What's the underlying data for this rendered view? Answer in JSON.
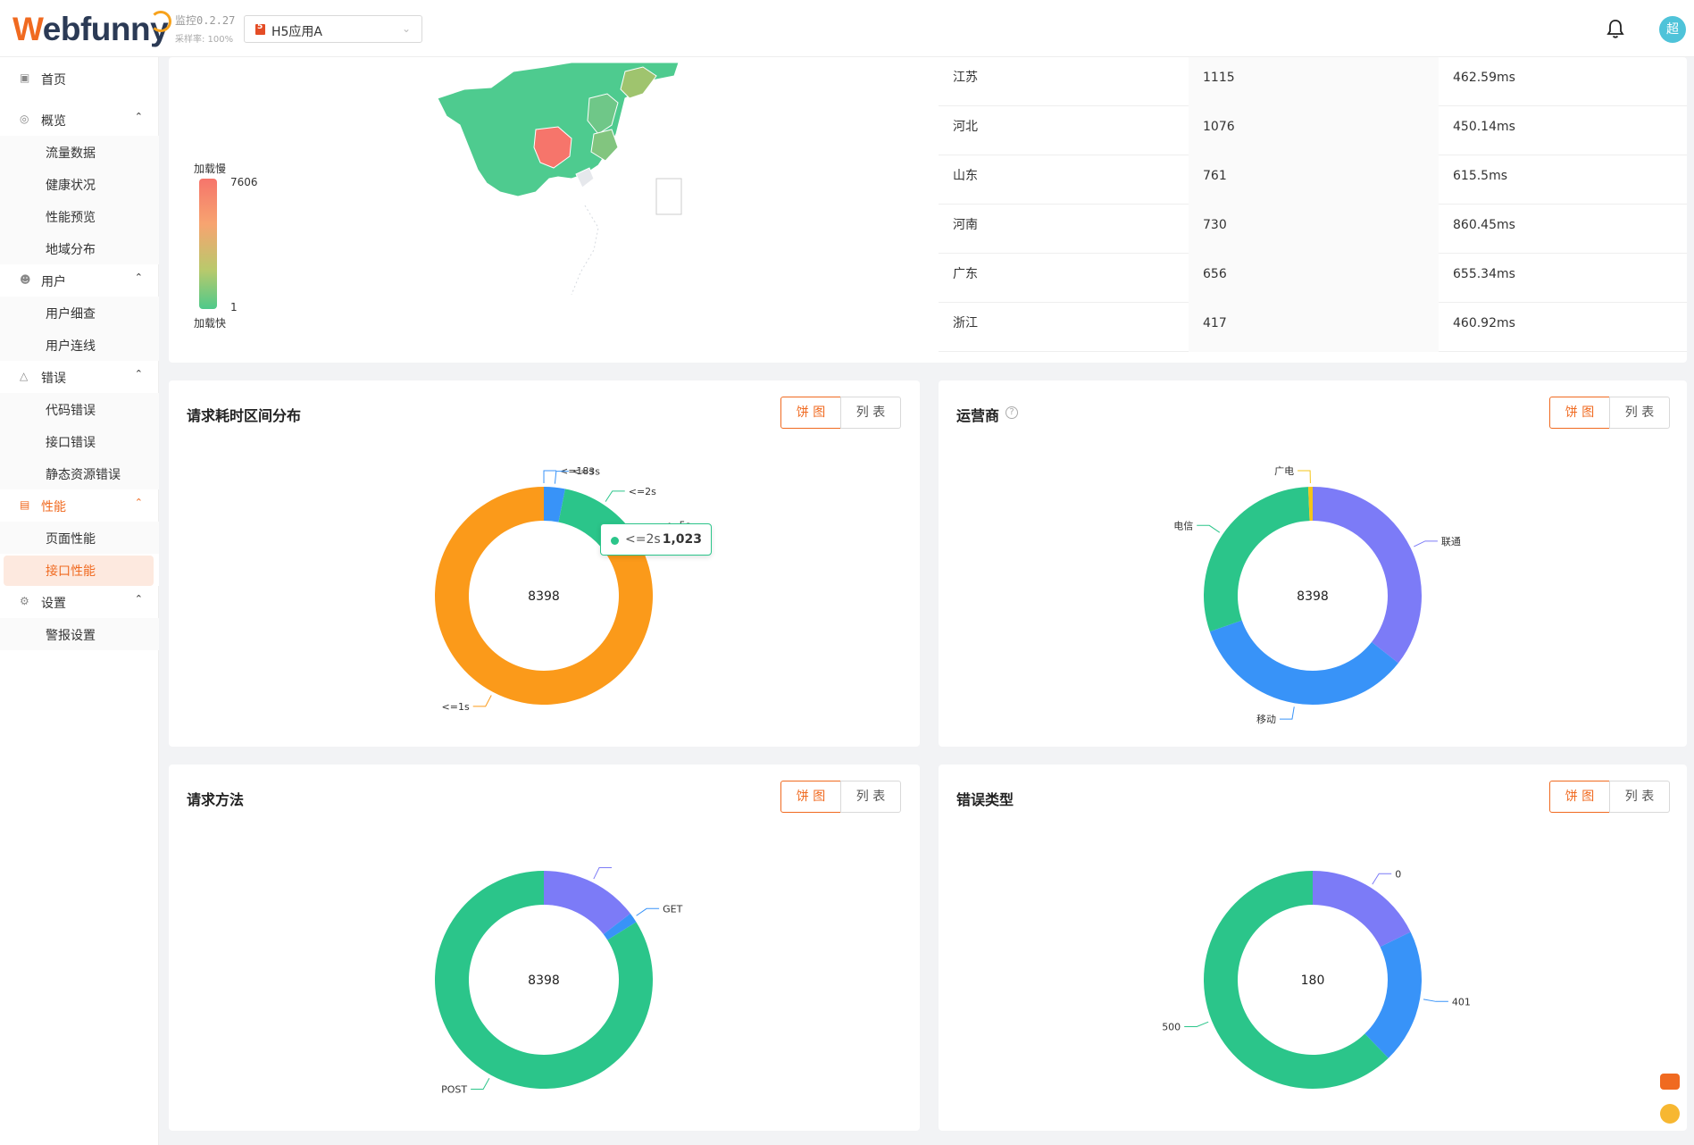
{
  "header": {
    "logo_w": "W",
    "logo_rest": "ebfunny",
    "version": "监控0.2.27",
    "sample_rate": "采样率: 100%",
    "app_name": "H5应用A",
    "avatar": "超"
  },
  "sidebar": {
    "home": "首页",
    "overview": "概览",
    "traffic": "流量数据",
    "health": "健康状况",
    "perf_preview": "性能预览",
    "geo": "地域分布",
    "user": "用户",
    "user_detail": "用户细查",
    "user_link": "用户连线",
    "error": "错误",
    "code_error": "代码错误",
    "api_error": "接口错误",
    "static_error": "静态资源错误",
    "perf": "性能",
    "page_perf": "页面性能",
    "api_perf": "接口性能",
    "settings": "设置",
    "alarm": "警报设置"
  },
  "map": {
    "legend_top": "加载慢",
    "legend_max": "7606",
    "legend_min": "1",
    "legend_bottom": "加载快"
  },
  "region_table": [
    {
      "province": "江苏",
      "count": "1115",
      "time": "462.59ms"
    },
    {
      "province": "河北",
      "count": "1076",
      "time": "450.14ms"
    },
    {
      "province": "山东",
      "count": "761",
      "time": "615.5ms"
    },
    {
      "province": "河南",
      "count": "730",
      "time": "860.45ms"
    },
    {
      "province": "广东",
      "count": "656",
      "time": "655.34ms"
    },
    {
      "province": "浙江",
      "count": "417",
      "time": "460.92ms"
    }
  ],
  "toggle": {
    "pie": "饼 图",
    "list": "列 表"
  },
  "cards": {
    "duration": "请求耗时区间分布",
    "carrier": "运营商",
    "method": "请求方法",
    "error_type": "错误类型"
  },
  "tooltip": {
    "name": "<=2s",
    "value": "1,023"
  },
  "colors": {
    "accent": "#f06a20",
    "green": "#2bc58a",
    "orange": "#fb9a1a",
    "blue": "#3893f8",
    "purple": "#7c7bf7",
    "yellow": "#f5c518"
  },
  "chart_data": [
    {
      "type": "pie",
      "title": "请求耗时区间分布",
      "total": "8398",
      "slices": [
        {
          "name": "<=18s",
          "value": 0
        },
        {
          "name": "<=3s",
          "value": 264
        },
        {
          "name": "<=2s",
          "value": 1023
        },
        {
          "name": "<=5s",
          "value": 10
        },
        {
          "name": "<=1s",
          "value": 7101
        }
      ]
    },
    {
      "type": "pie",
      "title": "运营商",
      "total": "8398",
      "slices": [
        {
          "name": "联通",
          "value": 2990
        },
        {
          "name": "移动",
          "value": 2860
        },
        {
          "name": "电信",
          "value": 2493
        },
        {
          "name": "广电",
          "value": 55
        }
      ]
    },
    {
      "type": "pie",
      "title": "请求方法",
      "total": "8398",
      "slices": [
        {
          "name": "",
          "value": 1227
        },
        {
          "name": "GET",
          "value": 126
        },
        {
          "name": "POST",
          "value": 7045
        }
      ]
    },
    {
      "type": "pie",
      "title": "错误类型",
      "total": "180",
      "slices": [
        {
          "name": "0",
          "value": 32
        },
        {
          "name": "401",
          "value": 36
        },
        {
          "name": "500",
          "value": 112
        }
      ]
    }
  ]
}
